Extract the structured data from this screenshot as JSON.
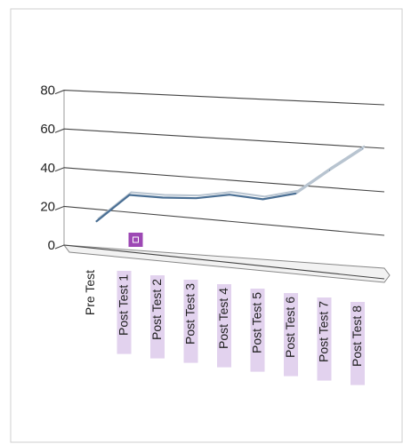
{
  "chart_data": {
    "type": "line",
    "view": "3d-perspective",
    "title": "",
    "xlabel": "",
    "ylabel": "",
    "categories": [
      "Pre Test",
      "Post Test 1",
      "Post Test 2",
      "Post Test 3",
      "Post Test 4",
      "Post Test 5",
      "Post Test 6",
      "Post Test 7",
      "Post Test 8"
    ],
    "y_ticks": [
      "0",
      "20",
      "40",
      "60",
      "80"
    ],
    "ylim": [
      0,
      80
    ],
    "grid": true,
    "legend": "none",
    "series": [
      {
        "values": [
          20,
          35,
          35,
          36,
          39,
          38,
          42,
          54,
          65
        ]
      }
    ],
    "colors": {
      "series_line": "#4a6f94",
      "series_faded": "#b8c4d0",
      "gridline": "#444444",
      "floor": "#888888",
      "label_highlight": "#e2d2ee",
      "marker": "#9d48b4"
    }
  }
}
